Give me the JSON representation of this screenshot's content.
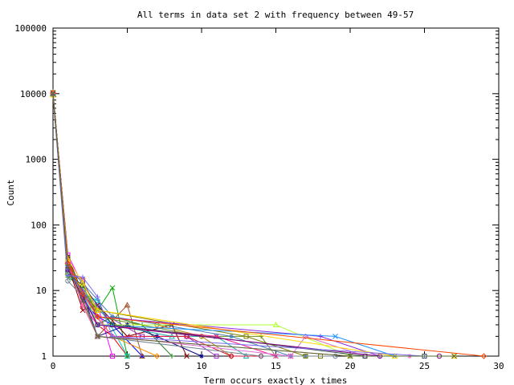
{
  "chart_data": {
    "type": "line",
    "title": "All terms in data set 2 with frequency between 49-57",
    "xlabel": "Term occurs exactly x times",
    "ylabel": "Count",
    "xlim": [
      0,
      30
    ],
    "ylim": [
      1,
      100000
    ],
    "yscale": "log",
    "grid": false,
    "legend": "none",
    "x_ticks": [
      "0",
      "5",
      "10",
      "15",
      "20",
      "25",
      "30"
    ],
    "y_ticks": [
      "1",
      "10",
      "100",
      "1000",
      "10000",
      "100000"
    ],
    "series": [
      {
        "color": "#ff0000",
        "points": [
          [
            0,
            10500
          ],
          [
            1,
            30
          ],
          [
            2,
            8
          ],
          [
            3,
            3
          ],
          [
            4,
            2
          ],
          [
            5,
            1
          ]
        ]
      },
      {
        "color": "#00aa00",
        "points": [
          [
            0,
            10200
          ],
          [
            1,
            22
          ],
          [
            2,
            10
          ],
          [
            3,
            5
          ],
          [
            4,
            11
          ],
          [
            5,
            1
          ]
        ]
      },
      {
        "color": "#0000ff",
        "points": [
          [
            0,
            9800
          ],
          [
            1,
            25
          ],
          [
            2,
            7
          ],
          [
            3,
            4
          ],
          [
            4,
            3
          ],
          [
            6,
            1
          ]
        ]
      },
      {
        "color": "#ff00ff",
        "points": [
          [
            0,
            10000
          ],
          [
            1,
            35
          ],
          [
            2,
            12
          ],
          [
            3,
            6
          ],
          [
            4,
            1
          ]
        ]
      },
      {
        "color": "#00cccc",
        "points": [
          [
            0,
            9600
          ],
          [
            1,
            18
          ],
          [
            2,
            9
          ],
          [
            3,
            7
          ],
          [
            5,
            1
          ]
        ]
      },
      {
        "color": "#a0522d",
        "points": [
          [
            0,
            10100
          ],
          [
            1,
            28
          ],
          [
            2,
            6
          ],
          [
            3,
            2
          ],
          [
            5,
            6
          ],
          [
            6,
            1
          ]
        ]
      },
      {
        "color": "#ff8c00",
        "points": [
          [
            0,
            9900
          ],
          [
            1,
            20
          ],
          [
            2,
            15
          ],
          [
            3,
            4
          ],
          [
            4,
            2
          ],
          [
            7,
            1
          ]
        ]
      },
      {
        "color": "#228b22",
        "points": [
          [
            0,
            10300
          ],
          [
            1,
            16
          ],
          [
            2,
            11
          ],
          [
            3,
            3
          ],
          [
            4,
            4
          ],
          [
            6,
            3
          ],
          [
            8,
            1
          ]
        ]
      },
      {
        "color": "#8b0000",
        "points": [
          [
            0,
            9700
          ],
          [
            1,
            24
          ],
          [
            2,
            5
          ],
          [
            3,
            6
          ],
          [
            5,
            2
          ],
          [
            8,
            3
          ],
          [
            9,
            1
          ]
        ]
      },
      {
        "color": "#000080",
        "points": [
          [
            0,
            10050
          ],
          [
            1,
            33
          ],
          [
            2,
            9
          ],
          [
            3,
            2
          ],
          [
            5,
            3
          ],
          [
            7,
            2
          ],
          [
            10,
            1
          ]
        ]
      },
      {
        "color": "#9932cc",
        "points": [
          [
            0,
            9850
          ],
          [
            1,
            19
          ],
          [
            2,
            14
          ],
          [
            3,
            5
          ],
          [
            6,
            2
          ],
          [
            9,
            2
          ],
          [
            11,
            1
          ]
        ]
      },
      {
        "color": "#b8860b",
        "points": [
          [
            0,
            10250
          ],
          [
            1,
            27
          ],
          [
            2,
            8
          ],
          [
            3,
            3
          ],
          [
            7,
            3
          ],
          [
            10,
            2
          ],
          [
            12,
            1
          ]
        ]
      },
      {
        "color": "#20b2aa",
        "points": [
          [
            0,
            9950
          ],
          [
            1,
            21
          ],
          [
            2,
            10
          ],
          [
            4,
            3
          ],
          [
            8,
            2
          ],
          [
            11,
            2
          ],
          [
            13,
            1
          ]
        ]
      },
      {
        "color": "#dc143c",
        "points": [
          [
            0,
            10150
          ],
          [
            1,
            26
          ],
          [
            2,
            7
          ],
          [
            4,
            2
          ],
          [
            9,
            2
          ],
          [
            12,
            1
          ],
          [
            14,
            1
          ]
        ]
      },
      {
        "color": "#6b8e23",
        "points": [
          [
            0,
            9750
          ],
          [
            1,
            17
          ],
          [
            2,
            12
          ],
          [
            3,
            4
          ],
          [
            10,
            2
          ],
          [
            14,
            2
          ],
          [
            15,
            1
          ]
        ]
      },
      {
        "color": "#ff1493",
        "points": [
          [
            0,
            10400
          ],
          [
            1,
            29
          ],
          [
            2,
            6
          ],
          [
            3,
            3
          ],
          [
            11,
            2
          ],
          [
            15,
            1
          ],
          [
            16,
            1
          ]
        ]
      },
      {
        "color": "#4682b4",
        "points": [
          [
            0,
            9650
          ],
          [
            1,
            23
          ],
          [
            2,
            13
          ],
          [
            4,
            4
          ],
          [
            12,
            2
          ],
          [
            16,
            1
          ],
          [
            17,
            1
          ]
        ]
      },
      {
        "color": "#808000",
        "points": [
          [
            0,
            10350
          ],
          [
            1,
            31
          ],
          [
            2,
            9
          ],
          [
            3,
            5
          ],
          [
            13,
            2
          ],
          [
            17,
            1
          ],
          [
            18,
            1
          ]
        ]
      },
      {
        "color": "#708090",
        "points": [
          [
            0,
            9550
          ],
          [
            1,
            14
          ],
          [
            2,
            8
          ],
          [
            3,
            2
          ],
          [
            14,
            1
          ],
          [
            19,
            1
          ]
        ]
      },
      {
        "color": "#adff2f",
        "points": [
          [
            0,
            10450
          ],
          [
            1,
            19
          ],
          [
            2,
            11
          ],
          [
            3,
            3
          ],
          [
            15,
            3
          ],
          [
            20,
            1
          ]
        ]
      },
      {
        "color": "#da70d6",
        "points": [
          [
            0,
            9900
          ],
          [
            1,
            24
          ],
          [
            2,
            7
          ],
          [
            4,
            2
          ],
          [
            16,
            1
          ],
          [
            17,
            2
          ],
          [
            21,
            1
          ]
        ]
      },
      {
        "color": "#8a2be2",
        "points": [
          [
            0,
            10000
          ],
          [
            1,
            20
          ],
          [
            2,
            10
          ],
          [
            3,
            4
          ],
          [
            18,
            2
          ],
          [
            22,
            1
          ]
        ]
      },
      {
        "color": "#1e90ff",
        "points": [
          [
            0,
            9800
          ],
          [
            1,
            22
          ],
          [
            2,
            9
          ],
          [
            3,
            3
          ],
          [
            19,
            2
          ],
          [
            23,
            1
          ]
        ]
      },
      {
        "color": "#ff69b4",
        "points": [
          [
            0,
            10100
          ],
          [
            1,
            25
          ],
          [
            2,
            6
          ],
          [
            3,
            2
          ],
          [
            20,
            1
          ],
          [
            24,
            1
          ]
        ]
      },
      {
        "color": "#2f4f4f",
        "points": [
          [
            0,
            9700
          ],
          [
            1,
            18
          ],
          [
            2,
            12
          ],
          [
            4,
            3
          ],
          [
            21,
            1
          ],
          [
            25,
            1
          ]
        ]
      },
      {
        "color": "#800080",
        "points": [
          [
            0,
            10200
          ],
          [
            1,
            21
          ],
          [
            2,
            8
          ],
          [
            3,
            3
          ],
          [
            22,
            1
          ],
          [
            26,
            1
          ]
        ]
      },
      {
        "color": "#ffd700",
        "points": [
          [
            0,
            9600
          ],
          [
            1,
            30
          ],
          [
            2,
            13
          ],
          [
            3,
            5
          ],
          [
            23,
            1
          ],
          [
            27,
            1
          ]
        ]
      },
      {
        "color": "#ff4500",
        "points": [
          [
            0,
            10300
          ],
          [
            1,
            26
          ],
          [
            2,
            9
          ],
          [
            3,
            4
          ],
          [
            29,
            1
          ]
        ]
      },
      {
        "color": "#7b68ee",
        "points": [
          [
            0,
            9850
          ],
          [
            1,
            17
          ],
          [
            2,
            16
          ],
          [
            3,
            8
          ],
          [
            4,
            2
          ],
          [
            25,
            1
          ]
        ]
      },
      {
        "color": "#556b2f",
        "points": [
          [
            0,
            10050
          ],
          [
            1,
            23
          ],
          [
            2,
            7
          ],
          [
            3,
            2
          ],
          [
            20,
            1
          ],
          [
            27,
            1
          ]
        ]
      }
    ]
  }
}
